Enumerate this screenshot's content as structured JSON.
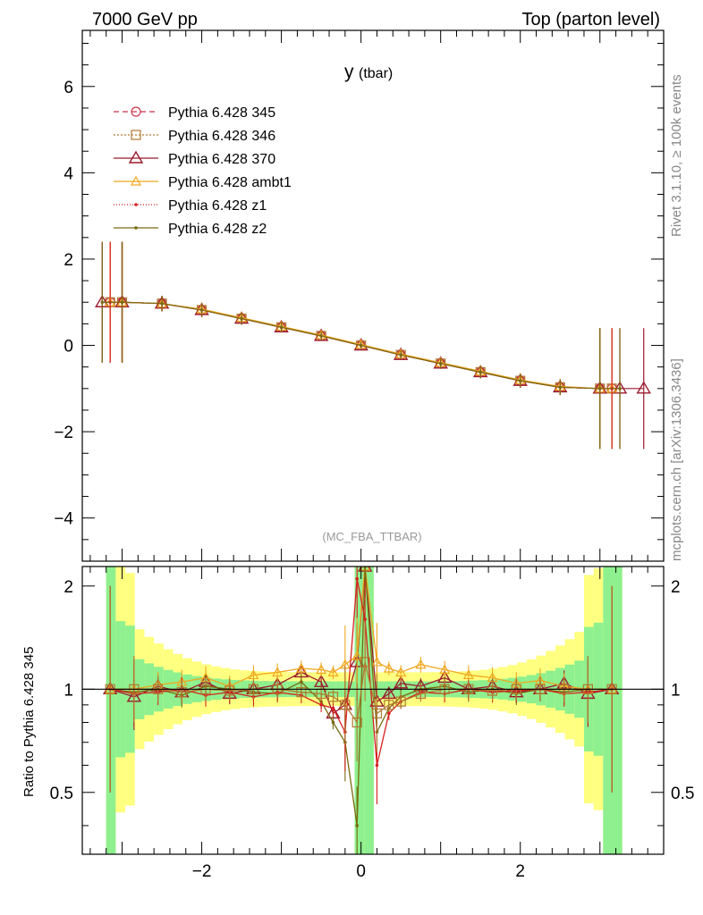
{
  "header": {
    "left": "7000 GeV pp",
    "right": "Top (parton level)"
  },
  "side_labels": {
    "rivet": "Rivet 3.1.10, ≥ 100k events",
    "mcplots": "mcplots.cern.ch [arXiv:1306.3436]"
  },
  "watermark": "(MC_FBA_TTBAR)",
  "colors": {
    "p345": "#c8344a",
    "p346": "#b07830",
    "p370": "#9b1a2e",
    "ambt1": "#f0a820",
    "z1": "#d62020",
    "z2": "#7a6a10",
    "band_green": "#8ef08e",
    "band_yellow": "#ffff80"
  },
  "chart_data": [
    {
      "type": "line",
      "title": "y",
      "title_sub": "(tbar)",
      "xlim": [
        -3.5,
        3.8
      ],
      "ylim": [
        -5,
        7.3
      ],
      "yticks": [
        -4,
        -2,
        0,
        2,
        4,
        6
      ],
      "ytick_labels": [
        "−4",
        "−2",
        "0",
        "2",
        "4",
        "6"
      ],
      "legend_placement": "top-left",
      "series": [
        {
          "name": "Pythia 6.428 345",
          "key": "p345",
          "marker": "circle",
          "dash": "6,4",
          "x": [
            -3.15,
            -3.0,
            -2.5,
            -2.0,
            -1.5,
            -1.0,
            -0.5,
            0.0,
            0.5,
            1.0,
            1.5,
            2.0,
            2.5,
            3.0,
            3.15
          ],
          "y": [
            1.0,
            1.0,
            0.97,
            0.82,
            0.62,
            0.42,
            0.22,
            0.0,
            -0.22,
            -0.42,
            -0.62,
            -0.82,
            -0.97,
            -1.0,
            -1.0
          ]
        },
        {
          "name": "Pythia 6.428 346",
          "key": "p346",
          "marker": "square",
          "dash": "2,2",
          "x": [
            -3.15,
            -3.0,
            -2.5,
            -2.0,
            -1.5,
            -1.0,
            -0.5,
            0.0,
            0.5,
            1.0,
            1.5,
            2.0,
            2.5,
            3.0,
            3.15
          ],
          "y": [
            1.0,
            1.0,
            0.97,
            0.82,
            0.62,
            0.42,
            0.22,
            0.0,
            -0.22,
            -0.42,
            -0.62,
            -0.82,
            -0.97,
            -1.0,
            -1.0
          ]
        },
        {
          "name": "Pythia 6.428 370",
          "key": "p370",
          "marker": "triangle",
          "dash": "",
          "x": [
            -3.25,
            -3.0,
            -2.5,
            -2.0,
            -1.5,
            -1.0,
            -0.5,
            0.0,
            0.5,
            1.0,
            1.5,
            2.0,
            2.5,
            3.0,
            3.25,
            3.55
          ],
          "y": [
            1.0,
            1.0,
            0.97,
            0.82,
            0.62,
            0.42,
            0.22,
            0.0,
            -0.22,
            -0.42,
            -0.62,
            -0.82,
            -0.97,
            -1.0,
            -1.0,
            -1.0
          ]
        },
        {
          "name": "Pythia 6.428 ambt1",
          "key": "ambt1",
          "marker": "triangle-small",
          "dash": "",
          "x": [
            -3.15,
            -3.0,
            -2.5,
            -2.0,
            -1.5,
            -1.0,
            -0.5,
            0.0,
            0.5,
            1.0,
            1.5,
            2.0,
            2.5,
            3.0,
            3.15
          ],
          "y": [
            1.0,
            1.0,
            0.97,
            0.84,
            0.64,
            0.44,
            0.24,
            0.02,
            -0.2,
            -0.4,
            -0.6,
            -0.8,
            -0.95,
            -1.0,
            -1.0
          ]
        },
        {
          "name": "Pythia 6.428 z1",
          "key": "z1",
          "marker": "dot",
          "dash": "1,2",
          "x": [
            -3.15,
            -3.0,
            -2.5,
            -2.0,
            -1.5,
            -1.0,
            -0.5,
            0.0,
            0.5,
            1.0,
            1.5,
            2.0,
            2.5,
            3.0,
            3.15
          ],
          "y": [
            1.0,
            1.0,
            0.97,
            0.82,
            0.62,
            0.42,
            0.22,
            0.0,
            -0.22,
            -0.42,
            -0.62,
            -0.82,
            -0.97,
            -1.0,
            -1.0
          ]
        },
        {
          "name": "Pythia 6.428 z2",
          "key": "z2",
          "marker": "dot",
          "dash": "",
          "x": [
            -3.25,
            -3.0,
            -2.5,
            -2.0,
            -1.5,
            -1.0,
            -0.5,
            0.0,
            0.5,
            1.0,
            1.5,
            2.0,
            2.5,
            3.0,
            3.25
          ],
          "y": [
            1.0,
            1.0,
            0.97,
            0.82,
            0.62,
            0.42,
            0.22,
            0.0,
            -0.22,
            -0.42,
            -0.62,
            -0.82,
            -0.97,
            -1.0,
            -1.0
          ]
        }
      ]
    },
    {
      "type": "line",
      "ylabel": "Ratio to Pythia 6.428 345",
      "xlim": [
        -3.5,
        3.8
      ],
      "ylim": [
        0.33,
        2.28
      ],
      "log_y": true,
      "xticks": [
        -2,
        0,
        2
      ],
      "xtick_labels": [
        "−2",
        "0",
        "2"
      ],
      "yticks": [
        0.5,
        1,
        2
      ],
      "ytick_labels": [
        "0.5",
        "1",
        "2"
      ],
      "series": [
        {
          "name": "Pythia 6.428 370",
          "key": "p370",
          "x": [
            -3.15,
            -2.85,
            -2.55,
            -2.25,
            -1.95,
            -1.65,
            -1.35,
            -1.05,
            -0.75,
            -0.5,
            -0.35,
            -0.2,
            -0.05,
            0.05,
            0.2,
            0.35,
            0.5,
            0.75,
            1.05,
            1.35,
            1.65,
            1.95,
            2.25,
            2.55,
            2.85,
            3.15
          ],
          "y": [
            1.0,
            0.95,
            1.02,
            0.98,
            1.05,
            0.97,
            1.0,
            1.03,
            1.12,
            1.05,
            0.85,
            0.9,
            1.2,
            2.4,
            0.92,
            0.97,
            1.04,
            1.02,
            1.08,
            1.0,
            1.02,
            0.98,
            1.0,
            1.04,
            0.97,
            1.0
          ]
        },
        {
          "name": "Pythia 6.428 ambt1",
          "key": "ambt1",
          "x": [
            -3.15,
            -2.85,
            -2.55,
            -2.25,
            -1.95,
            -1.65,
            -1.35,
            -1.05,
            -0.75,
            -0.5,
            -0.35,
            -0.2,
            -0.05,
            0.05,
            0.2,
            0.35,
            0.5,
            0.75,
            1.05,
            1.35,
            1.65,
            1.95,
            2.25,
            2.55,
            2.85,
            3.15
          ],
          "y": [
            1.0,
            1.0,
            1.03,
            1.05,
            1.08,
            1.02,
            1.1,
            1.12,
            1.15,
            1.14,
            1.12,
            1.18,
            1.25,
            2.4,
            1.2,
            1.15,
            1.12,
            1.18,
            1.14,
            1.1,
            1.08,
            1.04,
            1.06,
            1.02,
            1.0,
            1.0
          ]
        },
        {
          "name": "Pythia 6.428 z2",
          "key": "z2",
          "x": [
            -3.15,
            -2.85,
            -2.55,
            -2.25,
            -1.95,
            -1.65,
            -1.35,
            -1.05,
            -0.75,
            -0.5,
            -0.35,
            -0.2,
            -0.05,
            0.05,
            0.2,
            0.35,
            0.5,
            0.75,
            1.05,
            1.35,
            1.65,
            1.95,
            2.25,
            2.55,
            2.85,
            3.15
          ],
          "y": [
            1.0,
            0.98,
            1.0,
            0.96,
            1.02,
            1.0,
            0.98,
            0.97,
            1.05,
            0.92,
            0.8,
            0.7,
            0.4,
            2.4,
            0.75,
            0.88,
            0.95,
            1.0,
            1.02,
            0.98,
            1.0,
            0.97,
            1.0,
            0.98,
            1.0,
            1.0
          ]
        },
        {
          "name": "Pythia 6.428 z1",
          "key": "z1",
          "x": [
            -3.15,
            -2.85,
            -2.55,
            -2.25,
            -1.95,
            -1.65,
            -1.35,
            -1.05,
            -0.75,
            -0.5,
            -0.35,
            -0.2,
            -0.05,
            0.05,
            0.2,
            0.35,
            0.5,
            0.75,
            1.05,
            1.35,
            1.65,
            1.95,
            2.25,
            2.55,
            2.85,
            3.15
          ],
          "y": [
            1.0,
            0.97,
            0.98,
            1.0,
            0.96,
            0.98,
            0.95,
            0.98,
            0.96,
            0.9,
            0.88,
            0.75,
            2.1,
            1.6,
            0.6,
            0.85,
            0.92,
            0.98,
            0.97,
            1.0,
            0.98,
            0.99,
            1.0,
            0.97,
            0.98,
            1.0
          ]
        },
        {
          "name": "Pythia 6.428 346",
          "key": "p346",
          "x": [
            -3.15,
            -2.85,
            -2.55,
            -2.25,
            -1.95,
            -1.65,
            -1.35,
            -1.05,
            -0.75,
            -0.5,
            -0.35,
            -0.2,
            -0.05,
            0.05,
            0.2,
            0.35,
            0.5,
            0.75,
            1.05,
            1.35,
            1.65,
            1.95,
            2.25,
            2.55,
            2.85,
            3.15
          ],
          "y": [
            1.0,
            1.0,
            1.0,
            0.98,
            1.0,
            0.99,
            1.0,
            1.0,
            0.98,
            0.97,
            0.95,
            0.9,
            0.8,
            1.2,
            0.85,
            0.9,
            0.92,
            0.97,
            1.0,
            1.0,
            0.99,
            1.0,
            1.0,
            1.0,
            1.0,
            1.0
          ]
        }
      ]
    }
  ]
}
